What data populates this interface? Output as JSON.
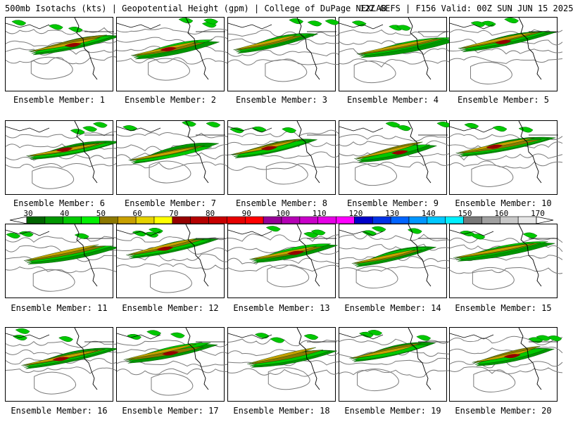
{
  "header": {
    "left": "500mb Isotachs (kts) | Geopotential Height (gpm) | College of DuPage NEXLAB",
    "right": "12Z GEFS | F156 Valid: 00Z SUN JUN 15 2025"
  },
  "panels": [
    {
      "label": "Ensemble Member: 1"
    },
    {
      "label": "Ensemble Member: 2"
    },
    {
      "label": "Ensemble Member: 3"
    },
    {
      "label": "Ensemble Member: 4"
    },
    {
      "label": "Ensemble Member: 5"
    },
    {
      "label": "Ensemble Member: 6"
    },
    {
      "label": "Ensemble Member: 7"
    },
    {
      "label": "Ensemble Member: 8"
    },
    {
      "label": "Ensemble Member: 9"
    },
    {
      "label": "Ensemble Member: 10"
    },
    {
      "label": "Ensemble Member: 11"
    },
    {
      "label": "Ensemble Member: 12"
    },
    {
      "label": "Ensemble Member: 13"
    },
    {
      "label": "Ensemble Member: 14"
    },
    {
      "label": "Ensemble Member: 15"
    },
    {
      "label": "Ensemble Member: 16"
    },
    {
      "label": "Ensemble Member: 17"
    },
    {
      "label": "Ensemble Member: 18"
    },
    {
      "label": "Ensemble Member: 19"
    },
    {
      "label": "Ensemble Member: 20"
    }
  ],
  "colorbar": {
    "ticks": [
      "30",
      "40",
      "50",
      "60",
      "70",
      "80",
      "90",
      "100",
      "110",
      "120",
      "130",
      "140",
      "150",
      "160",
      "170"
    ],
    "colors": [
      "#006400",
      "#009600",
      "#00c800",
      "#00f000",
      "#8c7800",
      "#c8a000",
      "#e6d200",
      "#ffff00",
      "#960000",
      "#b40000",
      "#c80000",
      "#e60000",
      "#ff0000",
      "#960096",
      "#b400b4",
      "#c800c8",
      "#e600e6",
      "#ff00ff",
      "#0000c8",
      "#0032e6",
      "#0064ff",
      "#0096ff",
      "#00c8ff",
      "#00f0ff",
      "#787878",
      "#a0a0a0",
      "#c8c8c8",
      "#e6e6e6"
    ]
  }
}
